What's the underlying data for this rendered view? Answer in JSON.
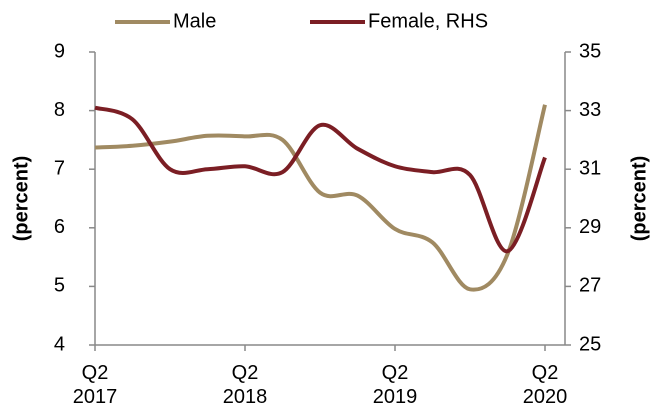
{
  "chart_data": {
    "type": "line",
    "categories": [
      "Q2\n2017",
      null,
      null,
      null,
      "Q2\n2018",
      null,
      null,
      null,
      "Q2\n2019",
      null,
      null,
      null,
      "Q2\n2020"
    ],
    "series": [
      {
        "name": "Male",
        "color": "#a08a62",
        "axis": "y",
        "values": [
          7.37,
          7.4,
          7.47,
          7.57,
          7.56,
          7.5,
          6.6,
          6.55,
          5.98,
          5.75,
          4.95,
          5.55,
          8.1
        ]
      },
      {
        "name": "Female, RHS",
        "color": "#7b1e24",
        "axis": "y2",
        "values": [
          33.1,
          32.7,
          31.0,
          31.0,
          31.1,
          30.9,
          32.5,
          31.7,
          31.1,
          30.9,
          30.8,
          28.2,
          31.4
        ]
      }
    ],
    "ylabel": "(percent)",
    "y2label": "(percent)",
    "ylim": [
      4,
      9
    ],
    "yticks": [
      4,
      5,
      6,
      7,
      8,
      9
    ],
    "y2lim": [
      25,
      35
    ],
    "y2ticks": [
      25,
      27,
      29,
      31,
      33,
      35
    ],
    "grid": false,
    "legend": "top"
  }
}
